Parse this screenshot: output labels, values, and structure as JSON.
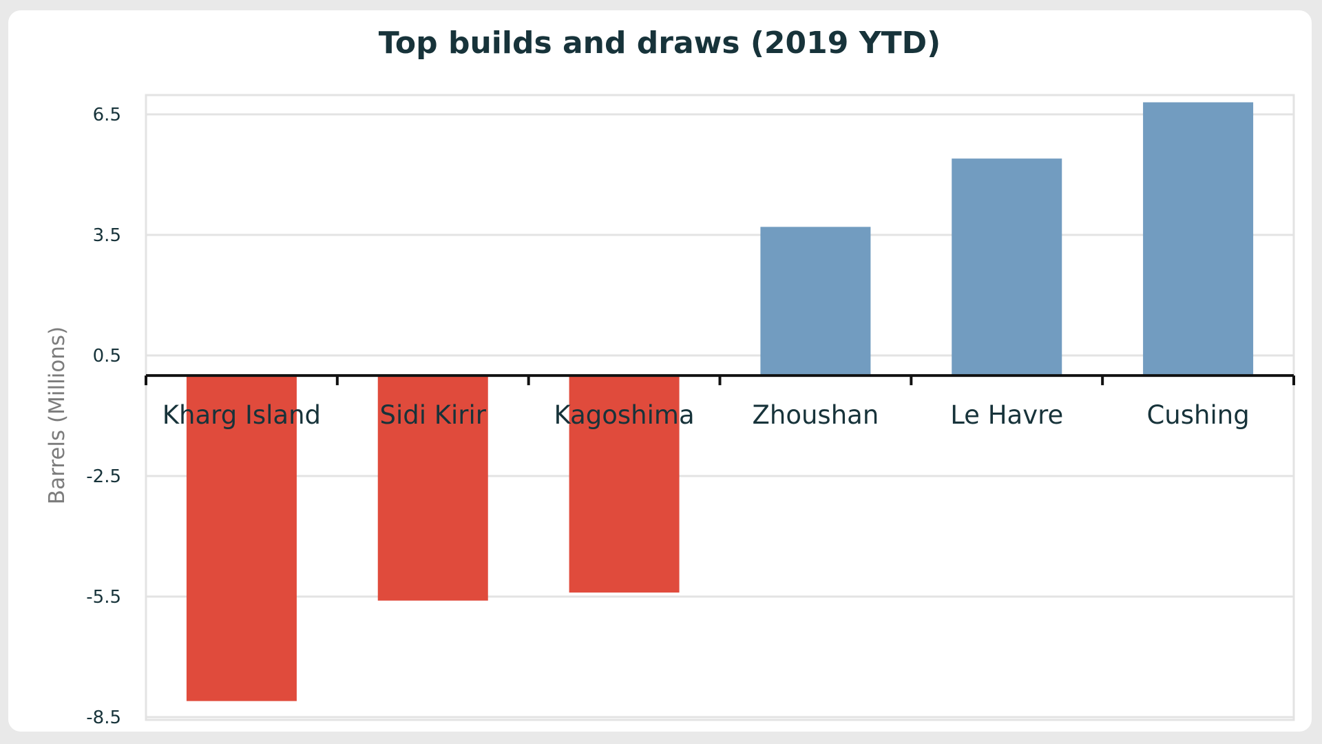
{
  "chart_data": {
    "type": "bar",
    "title": "Top builds and draws (2019 YTD)",
    "xlabel": "",
    "ylabel": "Barrels (Millions)",
    "categories": [
      "Kharg Island",
      "Sidi Kirir",
      "Kagoshima",
      "Zhoushan",
      "Le Havre",
      "Cushing"
    ],
    "values": [
      -8.1,
      -5.6,
      -5.4,
      3.7,
      5.4,
      6.8
    ],
    "ylim": [
      -8.5,
      7.0
    ],
    "yticks": [
      6.5,
      3.5,
      0.5,
      -2.5,
      -5.5,
      -8.5
    ],
    "ytick_labels": [
      "6.5",
      "3.5",
      "0.5",
      "-2.5",
      "-5.5",
      "-8.5"
    ],
    "grid": true,
    "legend": "none",
    "colors": {
      "positive": "#729cc0",
      "negative": "#e04b3c",
      "axis": "#111111",
      "grid": "#e3e3e3",
      "text": "#17333a",
      "ylabel": "#7c7c7c"
    }
  }
}
